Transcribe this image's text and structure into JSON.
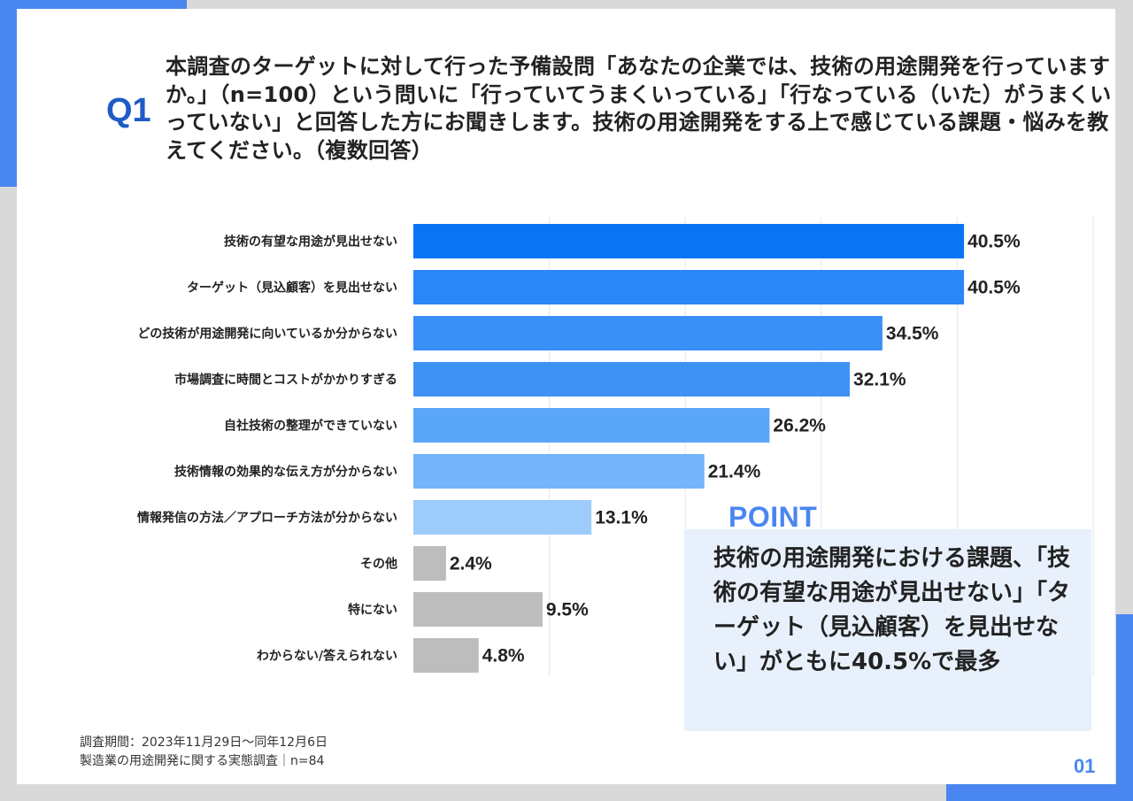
{
  "question": {
    "label": "Q1",
    "text": "本調査のターゲットに対して行った予備設問「あなたの企業では、技術の用途開発を行っていますか。」（n=100）という問いに「行っていてうまくいっている」「行なっている（いた）がうまくいっていない」と回答した方にお聞きします。技術の用途開発をする上で感じている課題・悩みを教えてください。（複数回答）"
  },
  "chart_data": {
    "type": "bar",
    "orientation": "horizontal",
    "categories": [
      "技術の有望な用途が見出せない",
      "ターゲット（見込顧客）を見出せない",
      "どの技術が用途開発に向いているか分からない",
      "市場調査に時間とコストがかかりすぎる",
      "自社技術の整理ができていない",
      "技術情報の効果的な伝え方が分からない",
      "情報発信の方法／アプローチ方法が分からない",
      "その他",
      "特にない",
      "わからない/答えられない"
    ],
    "values": [
      40.5,
      40.5,
      34.5,
      32.1,
      26.2,
      21.4,
      13.1,
      2.4,
      9.5,
      4.8
    ],
    "value_labels": [
      "40.5%",
      "40.5%",
      "34.5%",
      "32.1%",
      "26.2%",
      "21.4%",
      "13.1%",
      "2.4%",
      "9.5%",
      "4.8%"
    ],
    "bar_colors": [
      "#0a74f5",
      "#2b87f6",
      "#3a8ff6",
      "#3e92f6",
      "#5aa6f8",
      "#74b4f9",
      "#9dcbfb",
      "#bdbdbd",
      "#bdbdbd",
      "#bdbdbd"
    ],
    "xlim": [
      0,
      60
    ],
    "grid": true,
    "legend": "none"
  },
  "point": {
    "title": "POINT",
    "text": "技術の用途開発における課題、「技術の有望な用途が見出せない」「ターゲット（見込顧客）を見出せない」がともに40.5%で最多"
  },
  "footnotes": {
    "period": "調査期間：2023年11月29日～同年12月6日",
    "source": "製造業の用途開発に関する実態調査｜n=84"
  },
  "page_number": "01",
  "colors": {
    "accent": "#4a86f0",
    "title_blue": "#1e5bc6",
    "point_bg": "#e8f0fc"
  }
}
